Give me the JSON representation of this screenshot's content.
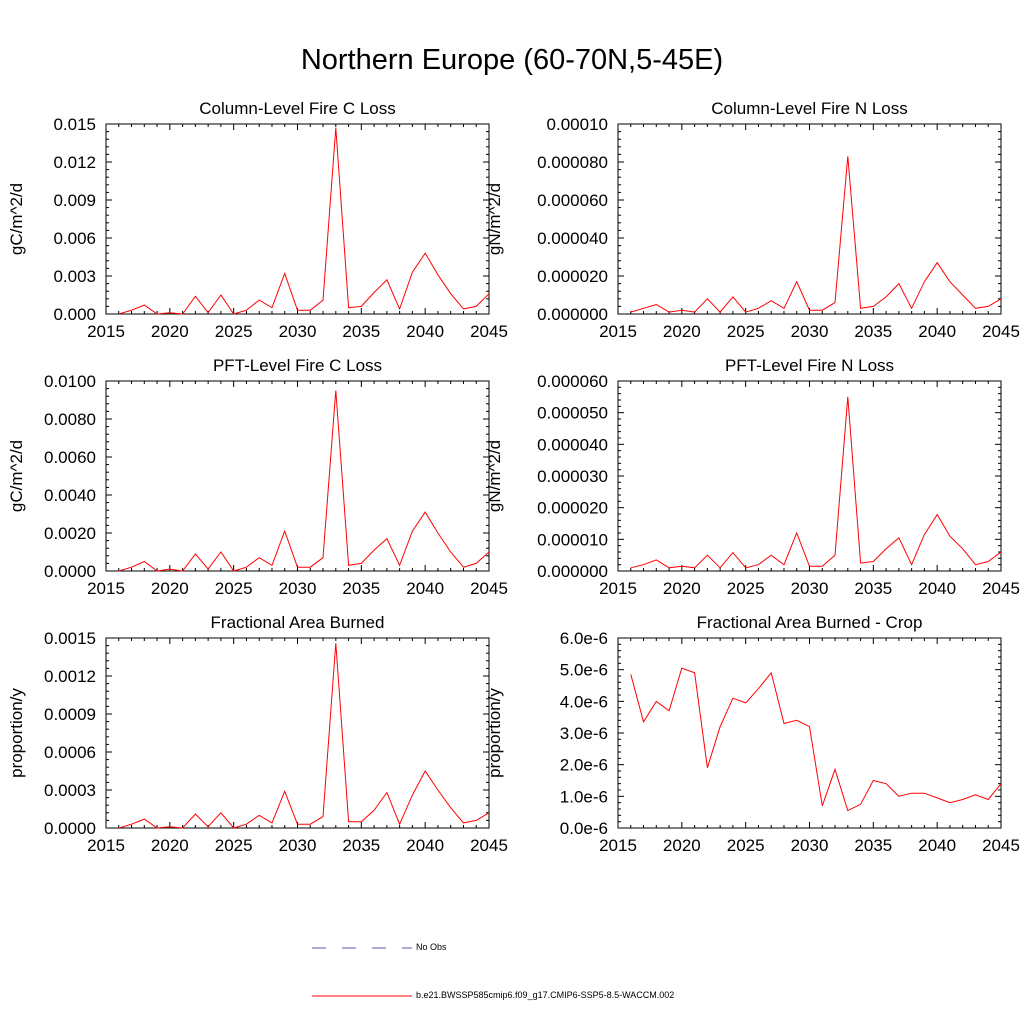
{
  "title": "Northern Europe (60-70N,5-45E)",
  "legend": {
    "items": [
      {
        "label": "No Obs",
        "color": "#5a5aa8",
        "style": "dashed"
      },
      {
        "label": "b.e21.BWSSP585cmip6.f09_g17.CMIP6-SSP5-8.5-WACCM.002",
        "color": "#ff0000",
        "style": "solid"
      }
    ]
  },
  "chart_data": [
    {
      "type": "line",
      "title": "Column-Level Fire C Loss",
      "ylabel": "gC/m^2/d",
      "xlim": [
        2015,
        2045
      ],
      "ylim": [
        0,
        0.015
      ],
      "xticks": [
        "2015",
        "2020",
        "2025",
        "2030",
        "2035",
        "2040",
        "2045"
      ],
      "yticks": [
        "0.000",
        "0.003",
        "0.006",
        "0.009",
        "0.012",
        "0.015"
      ],
      "series": [
        {
          "name": "b.e21.BWSSP585cmip6.f09_g17.CMIP6-SSP5-8.5-WACCM.002",
          "x": [
            2016,
            2017,
            2018,
            2019,
            2020,
            2021,
            2022,
            2023,
            2024,
            2025,
            2026,
            2027,
            2028,
            2029,
            2030,
            2031,
            2032,
            2033,
            2034,
            2035,
            2036,
            2037,
            2038,
            2039,
            2040,
            2041,
            2042,
            2043,
            2044,
            2045
          ],
          "values": [
            0.0,
            0.0003,
            0.0007,
            0.0,
            0.0001,
            0.0,
            0.0014,
            0.0001,
            0.0015,
            0.0,
            0.0003,
            0.0011,
            0.0005,
            0.0032,
            0.0003,
            0.0003,
            0.0011,
            0.0147,
            0.0005,
            0.0006,
            0.0017,
            0.0027,
            0.0004,
            0.0033,
            0.0048,
            0.0031,
            0.0016,
            0.0004,
            0.0006,
            0.0016
          ]
        }
      ]
    },
    {
      "type": "line",
      "title": "Column-Level Fire N Loss",
      "ylabel": "gN/m^2/d",
      "xlim": [
        2015,
        2045
      ],
      "ylim": [
        0,
        0.0001
      ],
      "xticks": [
        "2015",
        "2020",
        "2025",
        "2030",
        "2035",
        "2040",
        "2045"
      ],
      "yticks": [
        "0.000000",
        "0.000020",
        "0.000040",
        "0.000060",
        "0.000080",
        "0.00010"
      ],
      "series": [
        {
          "name": "b.e21.BWSSP585cmip6.f09_g17.CMIP6-SSP5-8.5-WACCM.002",
          "x": [
            2016,
            2017,
            2018,
            2019,
            2020,
            2021,
            2022,
            2023,
            2024,
            2025,
            2026,
            2027,
            2028,
            2029,
            2030,
            2031,
            2032,
            2033,
            2034,
            2035,
            2036,
            2037,
            2038,
            2039,
            2040,
            2041,
            2042,
            2043,
            2044,
            2045
          ],
          "values": [
            1e-06,
            3e-06,
            5e-06,
            1e-06,
            2e-06,
            1e-06,
            8e-06,
            1e-06,
            9e-06,
            1e-06,
            3e-06,
            7e-06,
            3e-06,
            1.7e-05,
            2e-06,
            2e-06,
            6e-06,
            8.3e-05,
            3e-06,
            4e-06,
            9e-06,
            1.6e-05,
            3e-06,
            1.7e-05,
            2.7e-05,
            1.7e-05,
            1e-05,
            3e-06,
            4e-06,
            8e-06
          ]
        }
      ]
    },
    {
      "type": "line",
      "title": "PFT-Level Fire C Loss",
      "ylabel": "gC/m^2/d",
      "xlim": [
        2015,
        2045
      ],
      "ylim": [
        0,
        0.01
      ],
      "xticks": [
        "2015",
        "2020",
        "2025",
        "2030",
        "2035",
        "2040",
        "2045"
      ],
      "yticks": [
        "0.0000",
        "0.0020",
        "0.0040",
        "0.0060",
        "0.0080",
        "0.0100"
      ],
      "series": [
        {
          "name": "b.e21.BWSSP585cmip6.f09_g17.CMIP6-SSP5-8.5-WACCM.002",
          "x": [
            2016,
            2017,
            2018,
            2019,
            2020,
            2021,
            2022,
            2023,
            2024,
            2025,
            2026,
            2027,
            2028,
            2029,
            2030,
            2031,
            2032,
            2033,
            2034,
            2035,
            2036,
            2037,
            2038,
            2039,
            2040,
            2041,
            2042,
            2043,
            2044,
            2045
          ],
          "values": [
            0.0,
            0.0002,
            0.0005,
            0.0,
            0.0001,
            0.0,
            0.0009,
            0.0001,
            0.001,
            0.0,
            0.0002,
            0.0007,
            0.0003,
            0.0021,
            0.0002,
            0.0002,
            0.0007,
            0.0095,
            0.0003,
            0.0004,
            0.0011,
            0.0017,
            0.0003,
            0.0021,
            0.0031,
            0.002,
            0.001,
            0.0002,
            0.0004,
            0.001
          ]
        }
      ]
    },
    {
      "type": "line",
      "title": "PFT-Level Fire N Loss",
      "ylabel": "gN/m^2/d",
      "xlim": [
        2015,
        2045
      ],
      "ylim": [
        0,
        6e-05
      ],
      "xticks": [
        "2015",
        "2020",
        "2025",
        "2030",
        "2035",
        "2040",
        "2045"
      ],
      "yticks": [
        "0.000000",
        "0.000010",
        "0.000020",
        "0.000030",
        "0.000040",
        "0.000050",
        "0.000060"
      ],
      "series": [
        {
          "name": "b.e21.BWSSP585cmip6.f09_g17.CMIP6-SSP5-8.5-WACCM.002",
          "x": [
            2016,
            2017,
            2018,
            2019,
            2020,
            2021,
            2022,
            2023,
            2024,
            2025,
            2026,
            2027,
            2028,
            2029,
            2030,
            2031,
            2032,
            2033,
            2034,
            2035,
            2036,
            2037,
            2038,
            2039,
            2040,
            2041,
            2042,
            2043,
            2044,
            2045
          ],
          "values": [
            1e-06,
            2e-06,
            3.5e-06,
            1e-06,
            1.5e-06,
            1e-06,
            5e-06,
            1e-06,
            5.8e-06,
            1e-06,
            2e-06,
            5e-06,
            2e-06,
            1.2e-05,
            1.5e-06,
            1.5e-06,
            5e-06,
            5.5e-05,
            2.5e-06,
            3e-06,
            7e-06,
            1.05e-05,
            2e-06,
            1.15e-05,
            1.78e-05,
            1.1e-05,
            7e-06,
            2e-06,
            3e-06,
            6e-06
          ]
        }
      ]
    },
    {
      "type": "line",
      "title": "Fractional Area Burned",
      "ylabel": "proportion/y",
      "xlim": [
        2015,
        2045
      ],
      "ylim": [
        0,
        0.0015
      ],
      "xticks": [
        "2015",
        "2020",
        "2025",
        "2030",
        "2035",
        "2040",
        "2045"
      ],
      "yticks": [
        "0.0000",
        "0.0003",
        "0.0006",
        "0.0009",
        "0.0012",
        "0.0015"
      ],
      "series": [
        {
          "name": "b.e21.BWSSP585cmip6.f09_g17.CMIP6-SSP5-8.5-WACCM.002",
          "x": [
            2016,
            2017,
            2018,
            2019,
            2020,
            2021,
            2022,
            2023,
            2024,
            2025,
            2026,
            2027,
            2028,
            2029,
            2030,
            2031,
            2032,
            2033,
            2034,
            2035,
            2036,
            2037,
            2038,
            2039,
            2040,
            2041,
            2042,
            2043,
            2044,
            2045
          ],
          "values": [
            0.0,
            3e-05,
            7e-05,
            0.0,
            1e-05,
            0.0,
            0.00011,
            1e-05,
            0.00012,
            0.0,
            3e-05,
            0.0001,
            4e-05,
            0.00029,
            3e-05,
            3e-05,
            9e-05,
            0.00146,
            5e-05,
            5e-05,
            0.00014,
            0.00028,
            3e-05,
            0.00026,
            0.00045,
            0.0003,
            0.00016,
            4e-05,
            6e-05,
            0.00012
          ]
        }
      ]
    },
    {
      "type": "line",
      "title": "Fractional Area Burned - Crop",
      "ylabel": "proportion/y",
      "xlim": [
        2015,
        2045
      ],
      "ylim": [
        0,
        6e-06
      ],
      "xticks": [
        "2015",
        "2020",
        "2025",
        "2030",
        "2035",
        "2040",
        "2045"
      ],
      "yticks": [
        "0.0e-6",
        "1.0e-6",
        "2.0e-6",
        "3.0e-6",
        "4.0e-6",
        "5.0e-6",
        "6.0e-6"
      ],
      "series": [
        {
          "name": "b.e21.BWSSP585cmip6.f09_g17.CMIP6-SSP5-8.5-WACCM.002",
          "x": [
            2016,
            2017,
            2018,
            2019,
            2020,
            2021,
            2022,
            2023,
            2024,
            2025,
            2026,
            2027,
            2028,
            2029,
            2030,
            2031,
            2032,
            2033,
            2034,
            2035,
            2036,
            2037,
            2038,
            2039,
            2040,
            2041,
            2042,
            2043,
            2044,
            2045
          ],
          "values": [
            4.85e-06,
            3.35e-06,
            4e-06,
            3.7e-06,
            5.05e-06,
            4.9e-06,
            1.9e-06,
            3.2e-06,
            4.1e-06,
            3.95e-06,
            4.4e-06,
            4.9e-06,
            3.3e-06,
            3.4e-06,
            3.2e-06,
            7e-07,
            1.85e-06,
            5.5e-07,
            7.5e-07,
            1.5e-06,
            1.4e-06,
            1e-06,
            1.1e-06,
            1.1e-06,
            9.5e-07,
            8e-07,
            9e-07,
            1.05e-06,
            9e-07,
            1.4e-06
          ]
        }
      ]
    }
  ]
}
